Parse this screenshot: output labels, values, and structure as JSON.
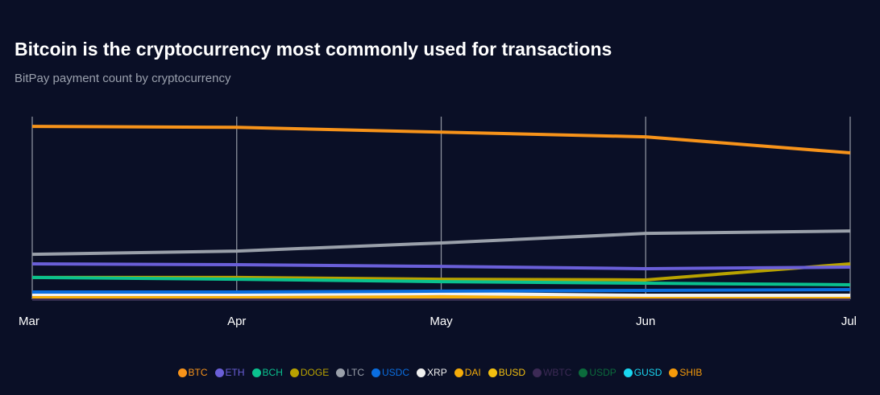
{
  "chart_data": {
    "type": "line",
    "title": "Bitcoin is the cryptocurrency most commonly used for transactions",
    "subtitle": "BitPay payment count by cryptocurrency",
    "categories": [
      "Mar",
      "Apr",
      "May",
      "Jun",
      "Jul"
    ],
    "ylim": [
      0,
      108
    ],
    "grid": "vertical",
    "legend": "bottom",
    "series": [
      {
        "name": "BTC",
        "color": "#f7931a",
        "values": [
          100,
          99.5,
          96.7,
          94,
          84.7
        ]
      },
      {
        "name": "ETH",
        "color": "#6a5fd8",
        "values": [
          20.5,
          20,
          19,
          17.7,
          18.6
        ]
      },
      {
        "name": "BCH",
        "color": "#0ac18e",
        "values": [
          12.6,
          11.6,
          10.2,
          9.3,
          8.4
        ]
      },
      {
        "name": "DOGE",
        "color": "#b8a200",
        "values": [
          12.6,
          12.6,
          11.6,
          11.2,
          20.5
        ]
      },
      {
        "name": "LTC",
        "color": "#9aa0aa",
        "values": [
          26,
          27.9,
          32.6,
          38.1,
          39.5
        ]
      },
      {
        "name": "USDC",
        "color": "#0a6ee0",
        "values": [
          4.2,
          4.2,
          4.7,
          5.1,
          5.6
        ]
      },
      {
        "name": "XRP",
        "color": "#f0f0f0",
        "values": [
          2.8,
          2.8,
          3.3,
          2.3,
          2.3
        ]
      },
      {
        "name": "DAI",
        "color": "#f5ac0a",
        "values": [
          1.6,
          1.6,
          1.6,
          1.6,
          1.6
        ]
      },
      {
        "name": "BUSD",
        "color": "#f3c010",
        "values": [
          1.4,
          1.4,
          1.4,
          1.4,
          1.4
        ]
      },
      {
        "name": "WBTC",
        "color": "#3c2a55",
        "values": [
          0.1,
          0.1,
          0.1,
          0.1,
          0.1
        ]
      },
      {
        "name": "USDP",
        "color": "#0b6b3c",
        "values": [
          0.1,
          0.1,
          0.1,
          0.1,
          0.1
        ]
      },
      {
        "name": "GUSD",
        "color": "#1ad6f0",
        "values": [
          0.4,
          0.4,
          0.4,
          0.4,
          0.4
        ]
      },
      {
        "name": "SHIB",
        "color": "#f59a0a",
        "values": [
          1.2,
          1.2,
          1.2,
          1.2,
          1.2
        ]
      }
    ]
  }
}
